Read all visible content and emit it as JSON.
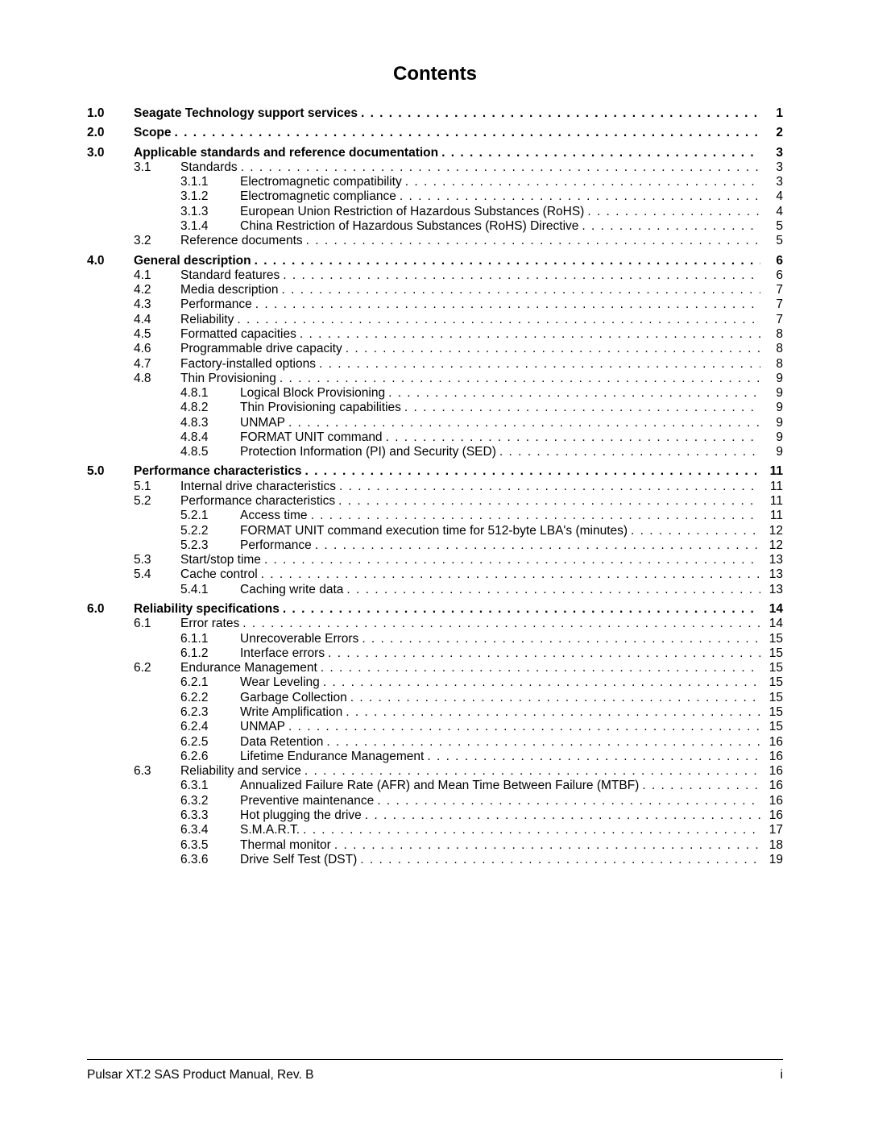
{
  "title": "Contents",
  "footer": {
    "left": "Pulsar XT.2 SAS Product Manual, Rev. B",
    "right": "i"
  },
  "toc": [
    {
      "level": 1,
      "num": "1.0",
      "label": "Seagate Technology support services",
      "page": "1",
      "bold": true
    },
    {
      "level": 1,
      "num": "2.0",
      "label": "Scope",
      "page": "2",
      "bold": true
    },
    {
      "level": 1,
      "num": "3.0",
      "label": "Applicable standards and reference documentation",
      "page": "3",
      "bold": true
    },
    {
      "level": 2,
      "num": "3.1",
      "label": "Standards",
      "page": "3"
    },
    {
      "level": 3,
      "num": "3.1.1",
      "label": "Electromagnetic compatibility",
      "page": "3"
    },
    {
      "level": 3,
      "num": "3.1.2",
      "label": "Electromagnetic compliance",
      "page": "4"
    },
    {
      "level": 3,
      "num": "3.1.3",
      "label": "European Union Restriction of Hazardous Substances (RoHS)",
      "page": "4"
    },
    {
      "level": 3,
      "num": "3.1.4",
      "label": "China Restriction of Hazardous Substances (RoHS) Directive",
      "page": "5"
    },
    {
      "level": 2,
      "num": "3.2",
      "label": "Reference documents",
      "page": "5"
    },
    {
      "level": 1,
      "num": "4.0",
      "label": "General description",
      "page": "6",
      "bold": true
    },
    {
      "level": 2,
      "num": "4.1",
      "label": "Standard features",
      "page": "6"
    },
    {
      "level": 2,
      "num": "4.2",
      "label": "Media description",
      "page": "7"
    },
    {
      "level": 2,
      "num": "4.3",
      "label": "Performance",
      "page": "7"
    },
    {
      "level": 2,
      "num": "4.4",
      "label": "Reliability",
      "page": "7"
    },
    {
      "level": 2,
      "num": "4.5",
      "label": "Formatted capacities",
      "page": "8"
    },
    {
      "level": 2,
      "num": "4.6",
      "label": "Programmable drive capacity",
      "page": "8"
    },
    {
      "level": 2,
      "num": "4.7",
      "label": "Factory-installed options",
      "page": "8"
    },
    {
      "level": 2,
      "num": "4.8",
      "label": "Thin Provisioning",
      "page": "9"
    },
    {
      "level": 3,
      "num": "4.8.1",
      "label": "Logical Block Provisioning",
      "page": "9"
    },
    {
      "level": 3,
      "num": "4.8.2",
      "label": "Thin Provisioning capabilities",
      "page": "9"
    },
    {
      "level": 3,
      "num": "4.8.3",
      "label": "UNMAP",
      "page": "9"
    },
    {
      "level": 3,
      "num": "4.8.4",
      "label": "FORMAT UNIT command",
      "page": "9"
    },
    {
      "level": 3,
      "num": "4.8.5",
      "label": "Protection Information (PI) and Security (SED)",
      "page": "9"
    },
    {
      "level": 1,
      "num": "5.0",
      "label": "Performance characteristics",
      "page": "11",
      "bold": true
    },
    {
      "level": 2,
      "num": "5.1",
      "label": "Internal drive characteristics",
      "page": "11"
    },
    {
      "level": 2,
      "num": "5.2",
      "label": "Performance characteristics",
      "page": "11"
    },
    {
      "level": 3,
      "num": "5.2.1",
      "label": "Access time",
      "page": "11"
    },
    {
      "level": 3,
      "num": "5.2.2",
      "label": "FORMAT UNIT command execution time for 512-byte LBA's (minutes)",
      "page": "12"
    },
    {
      "level": 3,
      "num": "5.2.3",
      "label": "Performance",
      "page": "12"
    },
    {
      "level": 2,
      "num": "5.3",
      "label": "Start/stop time",
      "page": "13"
    },
    {
      "level": 2,
      "num": "5.4",
      "label": "Cache control",
      "page": "13"
    },
    {
      "level": 3,
      "num": "5.4.1",
      "label": "Caching write data",
      "page": "13"
    },
    {
      "level": 1,
      "num": "6.0",
      "label": "Reliability specifications",
      "page": "14",
      "bold": true
    },
    {
      "level": 2,
      "num": "6.1",
      "label": "Error rates",
      "page": "14"
    },
    {
      "level": 3,
      "num": "6.1.1",
      "label": "Unrecoverable Errors",
      "page": "15"
    },
    {
      "level": 3,
      "num": "6.1.2",
      "label": "Interface errors",
      "page": "15"
    },
    {
      "level": 2,
      "num": "6.2",
      "label": "Endurance Management",
      "page": "15"
    },
    {
      "level": 3,
      "num": "6.2.1",
      "label": "Wear Leveling",
      "page": "15"
    },
    {
      "level": 3,
      "num": "6.2.2",
      "label": "Garbage Collection",
      "page": "15"
    },
    {
      "level": 3,
      "num": "6.2.3",
      "label": "Write Amplification",
      "page": "15"
    },
    {
      "level": 3,
      "num": "6.2.4",
      "label": "UNMAP",
      "page": "15"
    },
    {
      "level": 3,
      "num": "6.2.5",
      "label": "Data Retention",
      "page": "16"
    },
    {
      "level": 3,
      "num": "6.2.6",
      "label": "Lifetime Endurance Management",
      "page": "16"
    },
    {
      "level": 2,
      "num": "6.3",
      "label": "Reliability and service",
      "page": "16"
    },
    {
      "level": 3,
      "num": "6.3.1",
      "label": "Annualized Failure Rate (AFR) and Mean Time Between Failure (MTBF)",
      "page": "16"
    },
    {
      "level": 3,
      "num": "6.3.2",
      "label": "Preventive maintenance",
      "page": "16"
    },
    {
      "level": 3,
      "num": "6.3.3",
      "label": "Hot plugging the drive",
      "page": "16"
    },
    {
      "level": 3,
      "num": "6.3.4",
      "label": "S.M.A.R.T.",
      "page": "17"
    },
    {
      "level": 3,
      "num": "6.3.5",
      "label": "Thermal monitor",
      "page": "18"
    },
    {
      "level": 3,
      "num": "6.3.6",
      "label": "Drive Self Test (DST)",
      "page": "19"
    }
  ]
}
